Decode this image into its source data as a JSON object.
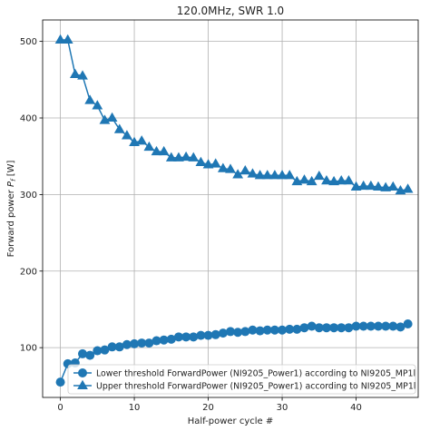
{
  "chart_data": {
    "type": "line",
    "title": "120.0MHz, SWR 1.0",
    "xlabel": "Half-power cycle #",
    "ylabel": "Forward power P_f [W]",
    "xlim": [
      -2.4,
      48.4
    ],
    "ylim": [
      35,
      528
    ],
    "xticks": [
      0,
      10,
      20,
      30,
      40
    ],
    "yticks": [
      100,
      200,
      300,
      400,
      500
    ],
    "grid": true,
    "legend_position": "lower-right",
    "colors": {
      "series": "#1f77b4"
    },
    "x": [
      0,
      1,
      2,
      3,
      4,
      5,
      6,
      7,
      8,
      9,
      10,
      11,
      12,
      13,
      14,
      15,
      16,
      17,
      18,
      19,
      20,
      21,
      22,
      23,
      24,
      25,
      26,
      27,
      28,
      29,
      30,
      31,
      32,
      33,
      34,
      35,
      36,
      37,
      38,
      39,
      40,
      41,
      42,
      43,
      44,
      45,
      46,
      47
    ],
    "series": [
      {
        "name": "Lower threshold ForwardPower (NI9205_Power1) according to NI9205_MP1l",
        "marker": "circle",
        "values": [
          55,
          79,
          80,
          92,
          90,
          96,
          97,
          101,
          101,
          104,
          105,
          106,
          106,
          109,
          110,
          111,
          114,
          114,
          114,
          116,
          116,
          117,
          119,
          121,
          120,
          121,
          123,
          122,
          123,
          123,
          123,
          124,
          124,
          126,
          128,
          126,
          126,
          126,
          126,
          126,
          128,
          128,
          128,
          128,
          128,
          128,
          127,
          131
        ]
      },
      {
        "name": "Upper threshold ForwardPower (NI9205_Power1) according to NI9205_MP1l",
        "marker": "triangle",
        "values": [
          502,
          502,
          457,
          455,
          423,
          416,
          397,
          400,
          385,
          377,
          368,
          370,
          362,
          356,
          356,
          348,
          348,
          349,
          348,
          342,
          339,
          340,
          334,
          333,
          326,
          331,
          327,
          325,
          325,
          325,
          325,
          325,
          317,
          319,
          317,
          324,
          318,
          317,
          318,
          318,
          310,
          311,
          311,
          310,
          309,
          310,
          305,
          307
        ]
      }
    ]
  }
}
